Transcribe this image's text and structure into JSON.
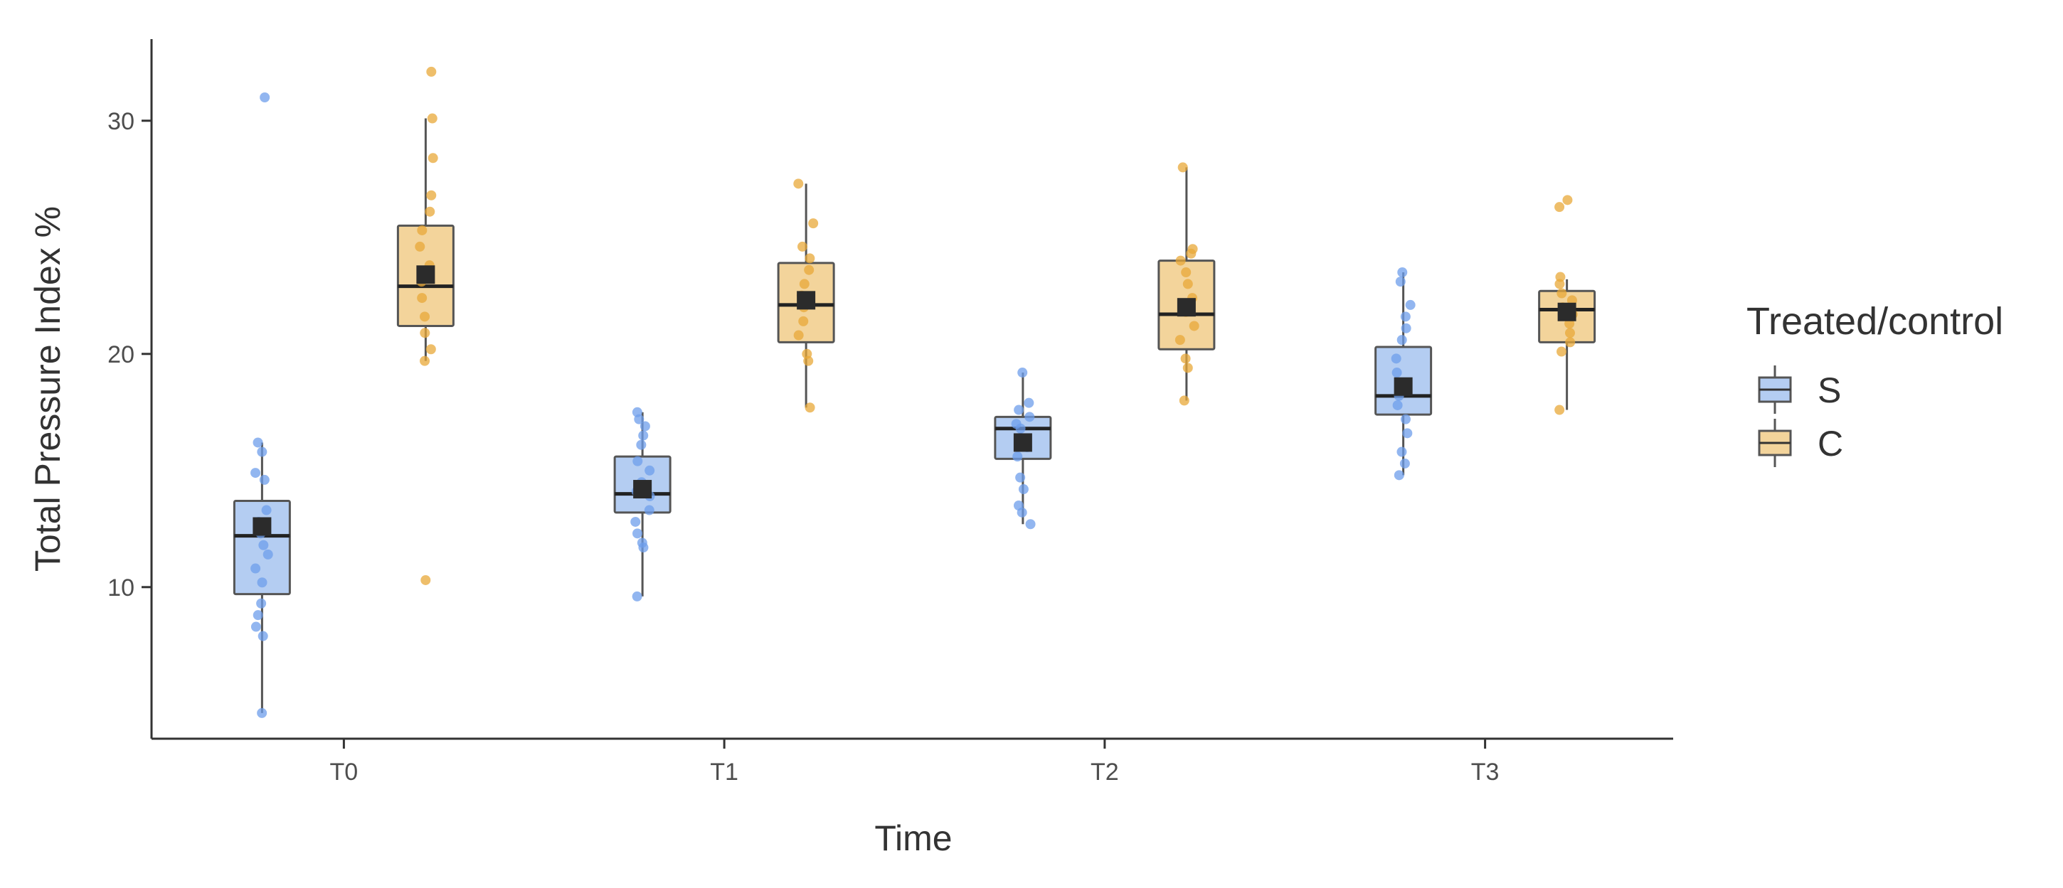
{
  "chart_data": {
    "type": "box",
    "title": "",
    "xlabel": "Time",
    "ylabel": "Total Pressure Index %",
    "categories": [
      "T0",
      "T1",
      "T2",
      "T3"
    ],
    "ylim": [
      3.5,
      33.5
    ],
    "yticks": [
      10,
      20,
      30
    ],
    "grid": false,
    "legend": {
      "title": "Treated/control",
      "position": "right"
    },
    "series": [
      {
        "name": "S",
        "color": "#6d9eeb",
        "fill": "#b4cdf2",
        "boxes": [
          {
            "category": "T0",
            "min": 4.6,
            "q1": 9.7,
            "median": 12.2,
            "q3": 13.7,
            "max": 16.2,
            "mean": 12.6,
            "points": [
              4.6,
              7.9,
              8.3,
              8.8,
              9.3,
              10.2,
              10.8,
              11.4,
              11.8,
              12.3,
              12.8,
              13.3,
              14.6,
              14.9,
              15.8,
              16.2,
              31.0
            ]
          },
          {
            "category": "T1",
            "min": 9.6,
            "q1": 13.2,
            "median": 14.0,
            "q3": 15.6,
            "max": 17.5,
            "mean": 14.2,
            "points": [
              9.6,
              11.7,
              11.9,
              12.3,
              12.8,
              13.3,
              13.9,
              14.1,
              14.5,
              15.0,
              15.4,
              16.1,
              16.5,
              16.9,
              17.2,
              17.5
            ]
          },
          {
            "category": "T2",
            "min": 12.7,
            "q1": 15.5,
            "median": 16.8,
            "q3": 17.3,
            "max": 19.2,
            "mean": 16.2,
            "points": [
              12.7,
              13.2,
              13.5,
              14.2,
              14.7,
              15.6,
              16.0,
              16.4,
              16.8,
              17.0,
              17.3,
              17.6,
              17.9,
              19.2
            ]
          },
          {
            "category": "T3",
            "min": 14.8,
            "q1": 17.4,
            "median": 18.2,
            "q3": 20.3,
            "max": 23.5,
            "mean": 18.6,
            "points": [
              14.8,
              15.3,
              15.8,
              16.6,
              17.2,
              17.8,
              18.2,
              18.6,
              19.2,
              19.8,
              20.6,
              21.1,
              21.6,
              22.1,
              23.1,
              23.5
            ]
          }
        ]
      },
      {
        "name": "C",
        "color": "#e8a838",
        "fill": "#f3d49b",
        "boxes": [
          {
            "category": "T0",
            "min": 19.7,
            "q1": 21.2,
            "median": 22.9,
            "q3": 25.5,
            "max": 30.1,
            "mean": 23.4,
            "points": [
              10.3,
              19.7,
              20.2,
              20.9,
              21.6,
              22.4,
              23.1,
              23.8,
              24.6,
              25.3,
              26.1,
              26.8,
              28.4,
              30.1,
              32.1
            ]
          },
          {
            "category": "T1",
            "min": 17.7,
            "q1": 20.5,
            "median": 22.1,
            "q3": 23.9,
            "max": 27.3,
            "mean": 22.3,
            "points": [
              17.7,
              19.7,
              20.0,
              20.8,
              21.4,
              22.0,
              22.5,
              23.0,
              23.6,
              24.1,
              24.6,
              25.6,
              27.3
            ]
          },
          {
            "category": "T2",
            "min": 18.0,
            "q1": 20.2,
            "median": 21.7,
            "q3": 24.0,
            "max": 28.0,
            "mean": 22.0,
            "points": [
              18.0,
              19.4,
              19.8,
              20.6,
              21.2,
              21.8,
              22.4,
              23.0,
              23.5,
              24.0,
              24.3,
              24.5,
              28.0
            ]
          },
          {
            "category": "T3",
            "min": 17.6,
            "q1": 20.5,
            "median": 21.9,
            "q3": 22.7,
            "max": 23.2,
            "mean": 21.8,
            "points": [
              17.6,
              20.1,
              20.5,
              20.9,
              21.3,
              21.7,
              22.0,
              22.3,
              22.6,
              23.0,
              23.3,
              26.3,
              26.6
            ]
          }
        ]
      }
    ]
  }
}
